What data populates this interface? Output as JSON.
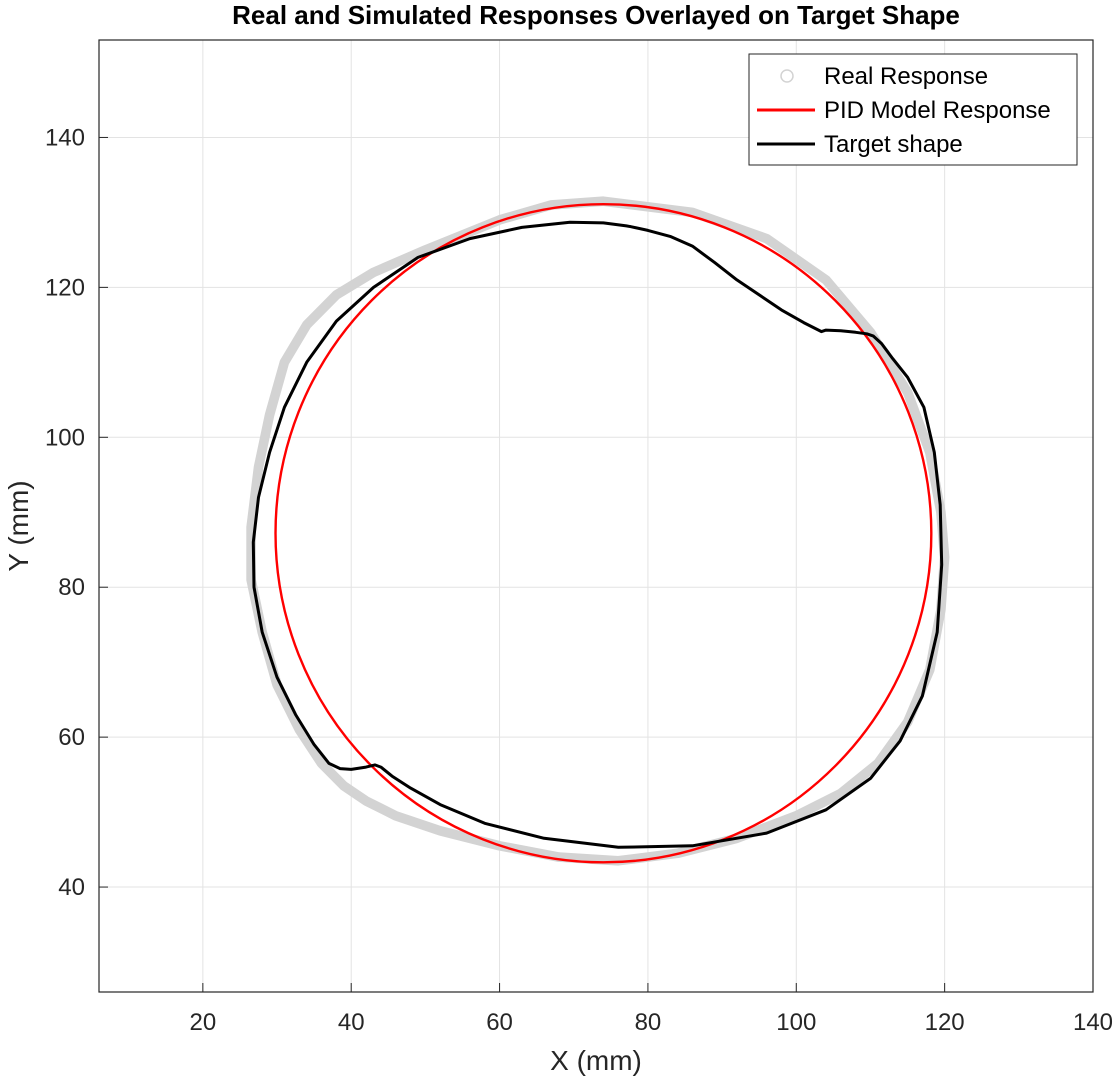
{
  "chart_data": {
    "type": "line",
    "title": "Real and Simulated Responses Overlayed on Target Shape",
    "xlabel": "X (mm)",
    "ylabel": "Y (mm)",
    "xlim": [
      6,
      140
    ],
    "ylim": [
      26,
      153
    ],
    "xticks": [
      20,
      40,
      60,
      80,
      100,
      120,
      140
    ],
    "yticks": [
      40,
      60,
      80,
      100,
      120,
      140
    ],
    "grid": true,
    "legend_position": "top-right",
    "series": [
      {
        "name": "Real Response",
        "style": "marker-band",
        "color": "#d3d3d3",
        "x": [
          74,
          86,
          96,
          104,
          110,
          115,
          118,
          119.5,
          120,
          119.5,
          118,
          115,
          111,
          106,
          100,
          92,
          84,
          76,
          68,
          60,
          52,
          46,
          42,
          39,
          36,
          33,
          30,
          28,
          26.5,
          26.5,
          27.5,
          29,
          31,
          34,
          38,
          43,
          50,
          60,
          67,
          74
        ],
        "y": [
          131.5,
          130,
          126.5,
          121,
          114,
          106,
          98,
          90,
          84,
          77,
          69,
          62,
          56.5,
          52.5,
          49.5,
          46.5,
          44.5,
          43.5,
          44,
          45.5,
          47.5,
          49.5,
          51.5,
          53.5,
          56.5,
          61,
          67,
          74,
          81,
          88,
          96,
          103,
          110,
          115,
          119,
          122,
          125,
          129,
          131,
          131.5
        ],
        "band_width_mm": 1.3
      },
      {
        "name": "PID Model Response",
        "style": "ellipse",
        "color": "#ff0000",
        "center": [
          74,
          87.2
        ],
        "radii": [
          44.2,
          43.9
        ]
      },
      {
        "name": "Target shape",
        "style": "line",
        "color": "#000000",
        "x": [
          77.7,
          77.1,
          74,
          69.5,
          63,
          56,
          49,
          43,
          38,
          34,
          31,
          29,
          27.5,
          26.8,
          26.9,
          28,
          30,
          32.5,
          35,
          37,
          38.5,
          40,
          42,
          43.2,
          44,
          45.5,
          48,
          52,
          58,
          66,
          76,
          86,
          96,
          104,
          110,
          114,
          117,
          119,
          119.6,
          119.4,
          118.6,
          117.2,
          115,
          113,
          111.5,
          110.4,
          109.5,
          108,
          106,
          104,
          103.4,
          101,
          98,
          95,
          92,
          89,
          86,
          83,
          80,
          77.7
        ],
        "y": [
          128.1,
          128.2,
          128.6,
          128.7,
          128,
          126.5,
          124,
          120,
          115.5,
          110,
          104,
          98,
          92,
          86,
          80,
          74,
          68,
          63,
          59,
          56.5,
          55.8,
          55.7,
          56,
          56.3,
          56,
          54.8,
          53.2,
          51,
          48.5,
          46.5,
          45.3,
          45.5,
          47.2,
          50.3,
          54.5,
          59.5,
          65.5,
          74,
          83,
          91,
          98,
          104,
          108,
          110.5,
          112.5,
          113.5,
          113.8,
          114,
          114.2,
          114.3,
          114.1,
          115.3,
          117,
          119,
          121,
          123.3,
          125.5,
          126.8,
          127.6,
          128.1
        ]
      }
    ]
  }
}
